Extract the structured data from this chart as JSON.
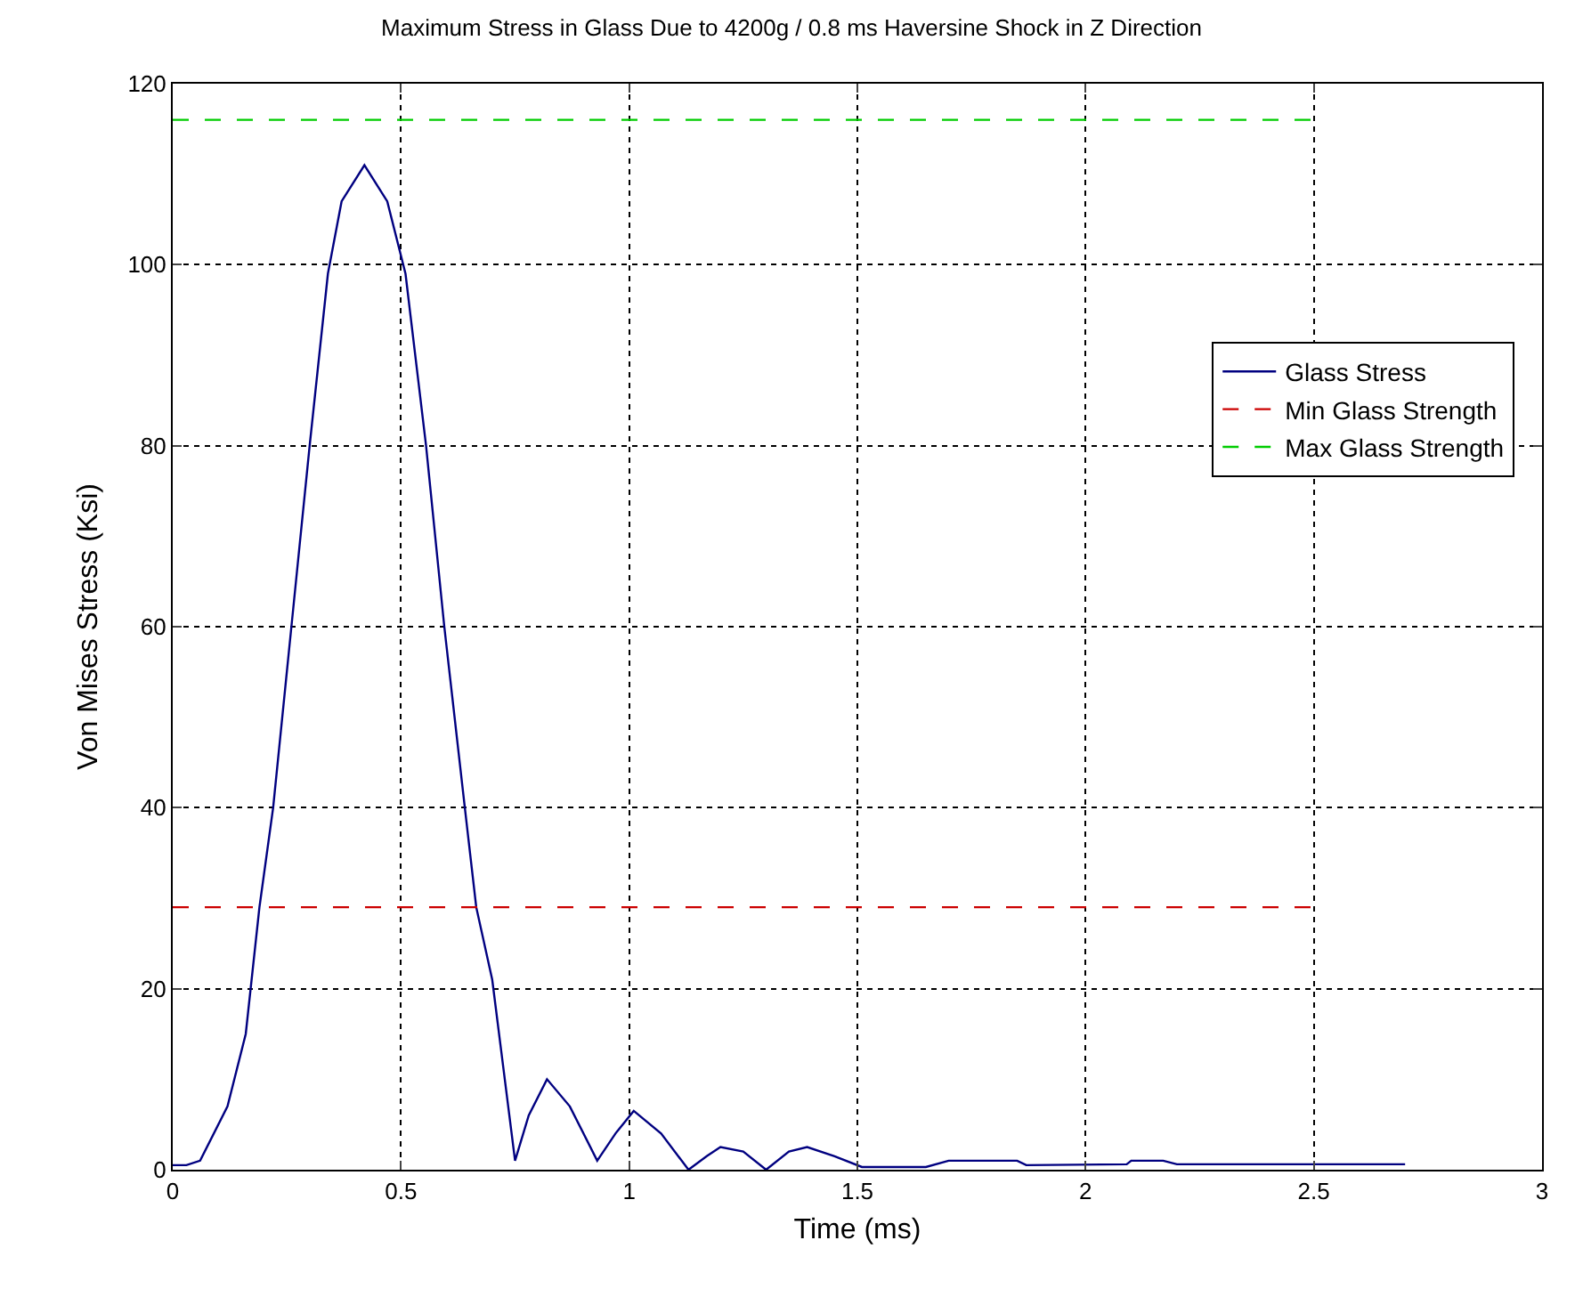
{
  "chart_data": {
    "type": "line",
    "title": "Maximum Stress in Glass Due to 4200g / 0.8 ms Haversine Shock in Z Direction",
    "xlabel": "Time (ms)",
    "ylabel": "Von Mises Stress (Ksi)",
    "xlim": [
      0,
      3
    ],
    "xticks": [
      0,
      0.5,
      1,
      1.5,
      2,
      2.5,
      3
    ],
    "ylim": [
      0,
      120
    ],
    "yticks": [
      0,
      20,
      40,
      60,
      80,
      100,
      120
    ],
    "grid": true,
    "legend": "right",
    "marker": "none",
    "series": [
      {
        "name": "Glass Stress",
        "color": "#000080",
        "line_style": "solid",
        "x": [
          0,
          0.03,
          0.06,
          0.12,
          0.16,
          0.19,
          0.22,
          0.26,
          0.3,
          0.34,
          0.37,
          0.42,
          0.47,
          0.51,
          0.555,
          0.595,
          0.64,
          0.665,
          0.7,
          0.72,
          0.75,
          0.78,
          0.82,
          0.87,
          0.93,
          0.97,
          1.01,
          1.07,
          1.13,
          1.17,
          1.2,
          1.25,
          1.3,
          1.35,
          1.39,
          1.45,
          1.51,
          1.65,
          1.7,
          1.85,
          1.87,
          2.09,
          2.1,
          2.17,
          2.2,
          2.7
        ],
        "values": [
          0.5,
          0.5,
          1,
          7,
          15,
          29,
          40,
          60,
          80,
          99,
          107,
          111,
          107,
          99,
          80,
          60,
          40,
          29,
          21,
          13,
          1,
          6,
          10,
          7,
          1,
          4,
          6.5,
          4,
          0,
          1.5,
          2.5,
          2,
          0,
          2,
          2.5,
          1.5,
          0.3,
          0.3,
          1,
          1,
          0.5,
          0.6,
          1,
          1,
          0.6,
          0.6
        ]
      },
      {
        "name": "Min Glass Strength",
        "color": "#cc0000",
        "line_style": "dashed",
        "x": [
          0,
          2.5
        ],
        "values": [
          29,
          29
        ]
      },
      {
        "name": "Max Glass Strength",
        "color": "#00cc00",
        "line_style": "dashed",
        "x": [
          0,
          2.5
        ],
        "values": [
          116,
          116
        ]
      }
    ]
  }
}
